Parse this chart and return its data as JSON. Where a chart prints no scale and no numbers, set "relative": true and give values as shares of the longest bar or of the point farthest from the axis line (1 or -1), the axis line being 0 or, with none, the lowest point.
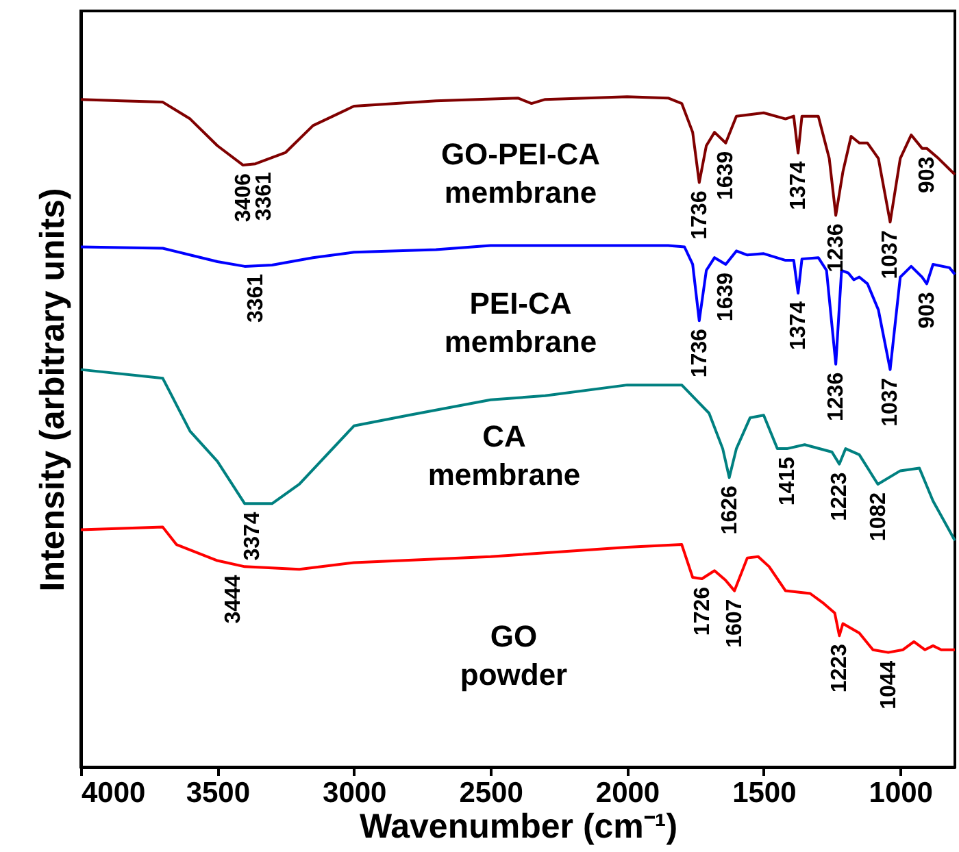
{
  "chart_data": {
    "type": "line",
    "relative": true,
    "xlabel": "Wavenumber (cm⁻¹)",
    "ylabel": "Intensity (arbitrary units)",
    "xlim": [
      4000,
      800
    ],
    "xticks": [
      4000,
      3500,
      3000,
      2500,
      2000,
      1500,
      1000
    ],
    "grid": false,
    "line_style": "solid",
    "marker": "none",
    "series": [
      {
        "name": "GO-PEI-CA membrane",
        "color": "#800000",
        "x": [
          4000,
          3850,
          3700,
          3600,
          3500,
          3406,
          3361,
          3250,
          3150,
          3000,
          2700,
          2400,
          2350,
          2300,
          2000,
          1850,
          1800,
          1760,
          1736,
          1710,
          1680,
          1639,
          1600,
          1500,
          1420,
          1390,
          1374,
          1360,
          1300,
          1260,
          1236,
          1210,
          1180,
          1150,
          1120,
          1080,
          1037,
          1000,
          960,
          920,
          903,
          860,
          820,
          800
        ],
        "values": [
          0.996,
          0.994,
          0.992,
          0.967,
          0.927,
          0.898,
          0.9,
          0.917,
          0.957,
          0.986,
          0.994,
          0.998,
          0.99,
          0.996,
          1.0,
          0.998,
          0.99,
          0.947,
          0.872,
          0.927,
          0.947,
          0.931,
          0.971,
          0.976,
          0.967,
          0.971,
          0.916,
          0.971,
          0.971,
          0.908,
          0.823,
          0.888,
          0.941,
          0.931,
          0.931,
          0.908,
          0.813,
          0.908,
          0.943,
          0.923,
          0.923,
          0.908,
          0.892,
          0.884
        ]
      },
      {
        "name": "PEI-CA membrane",
        "color": "#0000ff",
        "x": [
          4000,
          3700,
          3600,
          3500,
          3400,
          3300,
          3150,
          3000,
          2700,
          2500,
          2000,
          1850,
          1790,
          1760,
          1736,
          1710,
          1680,
          1639,
          1600,
          1560,
          1500,
          1420,
          1390,
          1374,
          1360,
          1300,
          1270,
          1236,
          1215,
          1190,
          1170,
          1150,
          1120,
          1080,
          1037,
          1000,
          960,
          920,
          903,
          880,
          820,
          800
        ],
        "values": [
          0.776,
          0.774,
          0.764,
          0.754,
          0.747,
          0.749,
          0.76,
          0.768,
          0.772,
          0.778,
          0.778,
          0.778,
          0.776,
          0.75,
          0.666,
          0.741,
          0.76,
          0.75,
          0.77,
          0.764,
          0.766,
          0.756,
          0.756,
          0.707,
          0.758,
          0.76,
          0.741,
          0.601,
          0.741,
          0.737,
          0.727,
          0.731,
          0.721,
          0.682,
          0.593,
          0.731,
          0.747,
          0.731,
          0.721,
          0.75,
          0.745,
          0.735
        ]
      },
      {
        "name": "CA membrane",
        "color": "#008080",
        "x": [
          4000,
          3700,
          3600,
          3500,
          3400,
          3300,
          3200,
          3000,
          2800,
          2500,
          2300,
          2000,
          1800,
          1700,
          1650,
          1626,
          1600,
          1550,
          1500,
          1450,
          1415,
          1350,
          1250,
          1223,
          1200,
          1150,
          1082,
          1000,
          930,
          880,
          800
        ],
        "values": [
          0.593,
          0.58,
          0.501,
          0.456,
          0.393,
          0.393,
          0.422,
          0.509,
          0.525,
          0.548,
          0.554,
          0.57,
          0.57,
          0.528,
          0.475,
          0.432,
          0.475,
          0.521,
          0.525,
          0.475,
          0.475,
          0.481,
          0.47,
          0.452,
          0.475,
          0.466,
          0.422,
          0.442,
          0.446,
          0.397,
          0.338
        ]
      },
      {
        "name": "GO powder",
        "color": "#ff0000",
        "x": [
          4000,
          3700,
          3650,
          3500,
          3400,
          3200,
          3000,
          2500,
          2000,
          1800,
          1760,
          1726,
          1680,
          1640,
          1607,
          1560,
          1520,
          1480,
          1420,
          1330,
          1280,
          1240,
          1223,
          1210,
          1150,
          1100,
          1044,
          990,
          950,
          910,
          880,
          850,
          800
        ],
        "values": [
          0.354,
          0.358,
          0.332,
          0.308,
          0.299,
          0.295,
          0.305,
          0.314,
          0.328,
          0.332,
          0.283,
          0.281,
          0.293,
          0.279,
          0.263,
          0.312,
          0.314,
          0.299,
          0.263,
          0.259,
          0.244,
          0.23,
          0.196,
          0.214,
          0.2,
          0.175,
          0.171,
          0.175,
          0.187,
          0.175,
          0.181,
          0.175,
          0.175
        ]
      }
    ],
    "annotations": [
      {
        "text": "3406",
        "x": 3406,
        "y": 0.898
      },
      {
        "text": "3361",
        "x": 3361,
        "y": 0.9
      },
      {
        "text": "1736",
        "x": 1736,
        "y": 0.872
      },
      {
        "text": "1639",
        "x": 1639,
        "y": 0.931
      },
      {
        "text": "1374",
        "x": 1374,
        "y": 0.916
      },
      {
        "text": "1236",
        "x": 1236,
        "y": 0.823
      },
      {
        "text": "1037",
        "x": 1037,
        "y": 0.813
      },
      {
        "text": "903",
        "x": 903,
        "y": 0.923
      },
      {
        "text": "3361",
        "x": 3361,
        "y": 0.748
      },
      {
        "text": "1736",
        "x": 1736,
        "y": 0.666
      },
      {
        "text": "1639",
        "x": 1639,
        "y": 0.75
      },
      {
        "text": "1374",
        "x": 1374,
        "y": 0.707
      },
      {
        "text": "1236",
        "x": 1236,
        "y": 0.601
      },
      {
        "text": "1037",
        "x": 1037,
        "y": 0.593
      },
      {
        "text": "903",
        "x": 903,
        "y": 0.721
      },
      {
        "text": "3374",
        "x": 3374,
        "y": 0.393
      },
      {
        "text": "1626",
        "x": 1626,
        "y": 0.432
      },
      {
        "text": "1415",
        "x": 1415,
        "y": 0.475
      },
      {
        "text": "1223",
        "x": 1223,
        "y": 0.452
      },
      {
        "text": "1082",
        "x": 1082,
        "y": 0.422
      },
      {
        "text": "3444",
        "x": 3444,
        "y": 0.299
      },
      {
        "text": "1726",
        "x": 1726,
        "y": 0.281
      },
      {
        "text": "1607",
        "x": 1607,
        "y": 0.263
      },
      {
        "text": "1223",
        "x": 1223,
        "y": 0.196
      },
      {
        "text": "1044",
        "x": 1044,
        "y": 0.171
      }
    ]
  }
}
